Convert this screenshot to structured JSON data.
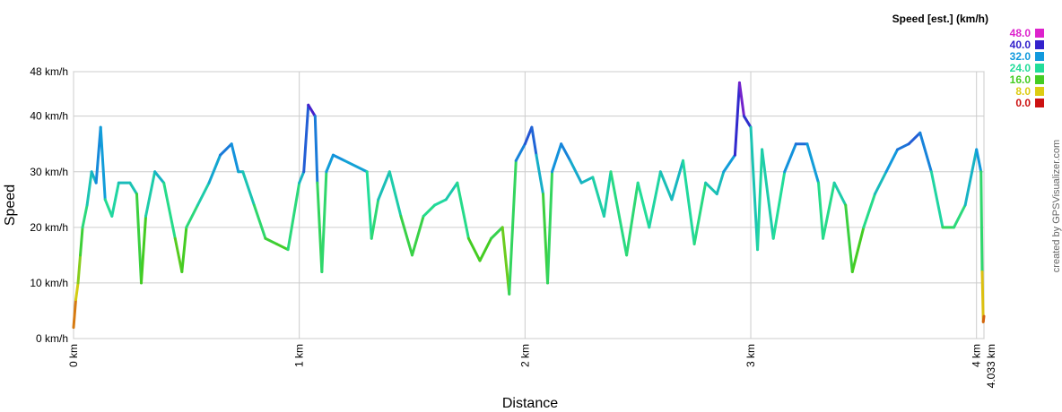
{
  "chart_data": {
    "type": "line",
    "x_label": "Distance",
    "y_label": "Speed",
    "credit": "created by GPSVisualizer.com",
    "legend_title": "Speed [est.] (km/h)",
    "colorscale": [
      {
        "value": 48,
        "label": "48.0",
        "color": "#dd22cc"
      },
      {
        "value": 40,
        "label": "40.0",
        "color": "#3322cc"
      },
      {
        "value": 32,
        "label": "32.0",
        "color": "#1199dd"
      },
      {
        "value": 24,
        "label": "24.0",
        "color": "#22dd99"
      },
      {
        "value": 16,
        "label": "16.0",
        "color": "#44cc22"
      },
      {
        "value": 8,
        "label": "8.0",
        "color": "#ddcc11"
      },
      {
        "value": 0,
        "label": "0.0",
        "color": "#cc1111"
      }
    ],
    "xlim": [
      0,
      4.033
    ],
    "ylim": [
      0,
      48
    ],
    "xticks": [
      {
        "value": 0,
        "label": "0 km"
      },
      {
        "value": 1,
        "label": "1 km"
      },
      {
        "value": 2,
        "label": "2 km"
      },
      {
        "value": 3,
        "label": "3 km"
      },
      {
        "value": 4,
        "label": "4 km"
      },
      {
        "value": 4.033,
        "label": "4.033 km"
      }
    ],
    "yticks": [
      {
        "value": 0,
        "label": "0 km/h"
      },
      {
        "value": 10,
        "label": "10 km/h"
      },
      {
        "value": 20,
        "label": "20 km/h"
      },
      {
        "value": 30,
        "label": "30 km/h"
      },
      {
        "value": 40,
        "label": "40 km/h"
      },
      {
        "value": 48,
        "label": "48 km/h"
      }
    ],
    "grid": true,
    "x": [
      0,
      0.01,
      0.02,
      0.03,
      0.04,
      0.06,
      0.08,
      0.1,
      0.12,
      0.14,
      0.17,
      0.2,
      0.25,
      0.28,
      0.3,
      0.32,
      0.36,
      0.4,
      0.45,
      0.48,
      0.5,
      0.55,
      0.6,
      0.65,
      0.7,
      0.73,
      0.75,
      0.8,
      0.85,
      0.9,
      0.95,
      1.0,
      1.02,
      1.04,
      1.07,
      1.08,
      1.1,
      1.12,
      1.15,
      1.2,
      1.3,
      1.32,
      1.35,
      1.4,
      1.45,
      1.5,
      1.55,
      1.6,
      1.65,
      1.7,
      1.75,
      1.8,
      1.85,
      1.9,
      1.93,
      1.96,
      2.0,
      2.03,
      2.05,
      2.08,
      2.1,
      2.12,
      2.16,
      2.2,
      2.25,
      2.3,
      2.35,
      2.38,
      2.45,
      2.5,
      2.55,
      2.6,
      2.65,
      2.7,
      2.75,
      2.8,
      2.85,
      2.88,
      2.93,
      2.95,
      2.97,
      3.0,
      3.03,
      3.05,
      3.1,
      3.15,
      3.2,
      3.25,
      3.3,
      3.32,
      3.37,
      3.42,
      3.45,
      3.5,
      3.55,
      3.6,
      3.65,
      3.7,
      3.75,
      3.8,
      3.85,
      3.9,
      3.95,
      4.0,
      4.02,
      4.025,
      4.03,
      4.033
    ],
    "y": [
      2,
      7,
      10,
      15,
      20,
      24,
      30,
      28,
      38,
      25,
      22,
      28,
      28,
      26,
      10,
      22,
      30,
      28,
      18,
      12,
      20,
      24,
      28,
      33,
      35,
      30,
      30,
      24,
      18,
      17,
      16,
      28,
      30,
      42,
      40,
      28,
      12,
      30,
      33,
      32,
      30,
      18,
      25,
      30,
      22,
      15,
      22,
      24,
      25,
      28,
      18,
      14,
      18,
      20,
      8,
      32,
      35,
      38,
      33,
      26,
      10,
      30,
      35,
      32,
      28,
      29,
      22,
      30,
      15,
      28,
      20,
      30,
      25,
      32,
      17,
      28,
      26,
      30,
      33,
      46,
      40,
      38,
      16,
      34,
      18,
      30,
      35,
      35,
      28,
      18,
      28,
      24,
      12,
      20,
      26,
      30,
      34,
      35,
      37,
      30,
      20,
      20,
      24,
      34,
      30,
      12,
      3,
      4
    ]
  }
}
